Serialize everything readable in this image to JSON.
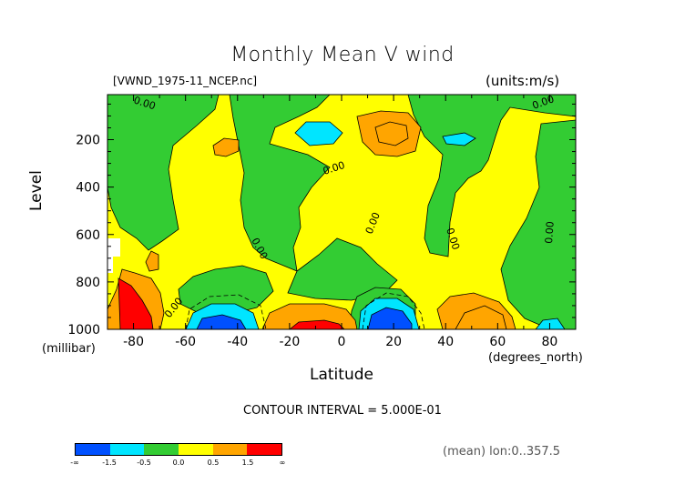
{
  "chart_data": {
    "type": "heatmap",
    "title": "Monthly Mean V wind",
    "file_label": "[VWND_1975-11_NCEP.nc]",
    "units_label": "(units:m/s)",
    "xlabel": "Latitude",
    "xunit": "(degrees_north)",
    "ylabel": "Level",
    "yunit": "(millibar)",
    "xlim": [
      -90,
      90
    ],
    "ylim": [
      1000,
      10
    ],
    "x_ticks": [
      -80,
      -60,
      -40,
      -20,
      0,
      20,
      40,
      60,
      80
    ],
    "y_ticks": [
      200,
      400,
      600,
      800,
      1000
    ],
    "contour_interval_text": "CONTOUR INTERVAL = 5.000E-01",
    "contour_label": "0.00",
    "mean_note": "(mean) lon:0..357.5",
    "legend": {
      "colors": [
        "#0050ff",
        "#00e5ff",
        "#33cc33",
        "#ffff00",
        "#ffa500",
        "#ff0000"
      ],
      "tick_labels": [
        "-∞",
        "-1.5",
        "-0.5",
        "0.0",
        "0.5",
        "1.5",
        "∞"
      ],
      "bins": [
        {
          "range": "< -1.5",
          "color": "#0050ff"
        },
        {
          "range": "-1.5 to -0.5",
          "color": "#00e5ff"
        },
        {
          "range": "-0.5 to 0.0",
          "color": "#33cc33"
        },
        {
          "range": "0.0 to 0.5",
          "color": "#ffff00"
        },
        {
          "range": "0.5 to 1.5",
          "color": "#ffa500"
        },
        {
          "range": "> 1.5",
          "color": "#ff0000"
        }
      ]
    }
  }
}
